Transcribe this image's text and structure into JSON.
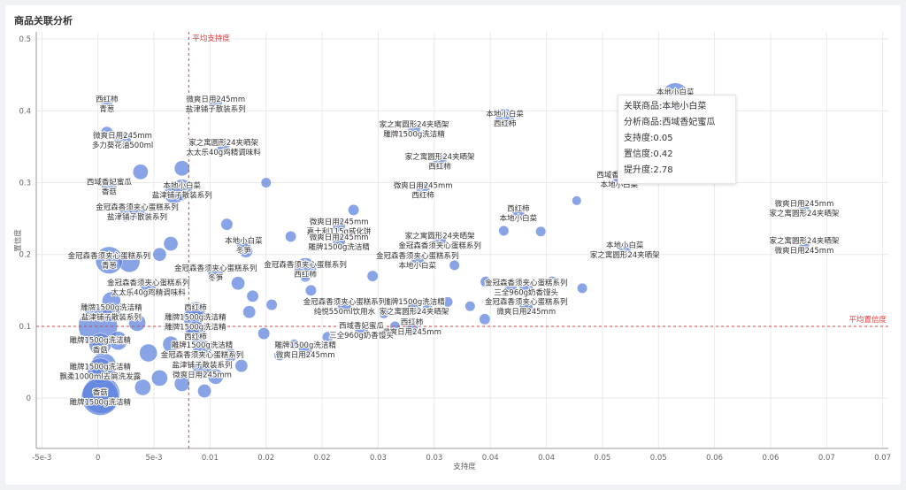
{
  "page": {
    "title": "商品关联分析"
  },
  "colors": {
    "bubble": "#5b7fde",
    "ref_line": "#e23b3b",
    "grid": "#e9e9e9",
    "axis": "#999999"
  },
  "tooltip": {
    "visible": true,
    "lines": [
      "关联商品:本地小白菜",
      "分析商品:西域香妃蜜瓜",
      "支持度:0.05",
      "置信度:0.42",
      "提升度:2.78"
    ]
  },
  "chart_data": {
    "type": "scatter",
    "xlabel": "支持度",
    "ylabel": "置信度",
    "xlim": [
      -0.0055,
      0.0705
    ],
    "ylim": [
      -0.07,
      0.51
    ],
    "x_ticks": [
      {
        "v": -0.005,
        "t": "-5e-3"
      },
      {
        "v": 0,
        "t": "0"
      },
      {
        "v": 0.005,
        "t": "5e-3"
      },
      {
        "v": 0.01,
        "t": "0.01"
      },
      {
        "v": 0.015,
        "t": "0.02"
      },
      {
        "v": 0.02,
        "t": "0.02"
      },
      {
        "v": 0.025,
        "t": "0.03"
      },
      {
        "v": 0.03,
        "t": "0.03"
      },
      {
        "v": 0.035,
        "t": "0.04"
      },
      {
        "v": 0.04,
        "t": "0.04"
      },
      {
        "v": 0.045,
        "t": "0.05"
      },
      {
        "v": 0.05,
        "t": "0.05"
      },
      {
        "v": 0.055,
        "t": "0.06"
      },
      {
        "v": 0.06,
        "t": "0.06"
      },
      {
        "v": 0.065,
        "t": "0.07"
      },
      {
        "v": 0.07,
        "t": "0.07"
      }
    ],
    "y_ticks": [
      {
        "v": 0,
        "t": "0"
      },
      {
        "v": 0.1,
        "t": "0.1"
      },
      {
        "v": 0.2,
        "t": "0.2"
      },
      {
        "v": 0.3,
        "t": "0.3"
      },
      {
        "v": 0.4,
        "t": "0.4"
      },
      {
        "v": 0.5,
        "t": "0.5"
      }
    ],
    "ref_lines": {
      "x": {
        "value": 0.0081,
        "label": "平均支持度"
      },
      "y": {
        "value": 0.1,
        "label": "平均置信度"
      }
    },
    "labeled_points": [
      {
        "x": 0.0515,
        "y": 0.42,
        "size": 3.2,
        "labels": [
          "本地小白菜",
          "西域香妃蜜瓜"
        ]
      },
      {
        "x": 0.0363,
        "y": 0.39,
        "size": 2.2,
        "labels": [
          "本地小白菜",
          "西红柿"
        ]
      },
      {
        "x": 0.0282,
        "y": 0.375,
        "size": 1.5,
        "labels": [
          "家之寓圆形24夹晒架",
          "雕牌1500g洗洁精"
        ]
      },
      {
        "x": 0.0305,
        "y": 0.33,
        "size": 1.6,
        "labels": [
          "家之寓圆形24夹晒架",
          "西红柿"
        ]
      },
      {
        "x": 0.029,
        "y": 0.29,
        "size": 1.6,
        "labels": [
          "微爽日用245mm",
          "西红柿"
        ]
      },
      {
        "x": 0.0465,
        "y": 0.305,
        "size": 1.6,
        "labels": [
          "西域香妃蜜瓜",
          "本地小白菜"
        ]
      },
      {
        "x": 0.0375,
        "y": 0.258,
        "size": 1.5,
        "labels": [
          "西红柿",
          "本地小白菜"
        ]
      },
      {
        "x": 0.063,
        "y": 0.265,
        "size": 1.2,
        "labels": [
          "微爽日用245mm",
          "家之寓圆形24夹晒架"
        ]
      },
      {
        "x": 0.063,
        "y": 0.213,
        "size": 1.2,
        "labels": [
          "家之寓圆形24夹晒架",
          "微爽日用245mm"
        ]
      },
      {
        "x": 0.047,
        "y": 0.207,
        "size": 1.4,
        "labels": [
          "本地小白菜",
          "家之寓圆形24夹晒架"
        ]
      },
      {
        "x": 0.0305,
        "y": 0.22,
        "size": 1.5,
        "labels": [
          "家之寓圆形24夹晒架",
          "金冠森香须夹心蛋糕系列"
        ]
      },
      {
        "x": 0.0285,
        "y": 0.192,
        "size": 1.5,
        "labels": [
          "金冠森香须夹心蛋糕系列",
          "本地小白菜"
        ]
      },
      {
        "x": 0.0382,
        "y": 0.155,
        "size": 1.6,
        "labels": [
          "金冠森香须夹心蛋糕系列",
          "三全960g奶香馒头"
        ]
      },
      {
        "x": 0.0382,
        "y": 0.128,
        "size": 1.6,
        "labels": [
          "金冠森香须夹心蛋糕系列",
          "微爽日用245mm"
        ]
      },
      {
        "x": 0.0282,
        "y": 0.128,
        "size": 1.5,
        "labels": [
          "雕牌1500g洗洁精",
          "家之寓圆形24夹晒架"
        ]
      },
      {
        "x": 0.028,
        "y": 0.1,
        "size": 1.5,
        "labels": [
          "西红柿",
          "微爽日用245mm"
        ]
      },
      {
        "x": 0.0215,
        "y": 0.24,
        "size": 1.5,
        "labels": [
          "微爽日用245mm",
          "嘉士利115g威化饼"
        ]
      },
      {
        "x": 0.0215,
        "y": 0.218,
        "size": 1.5,
        "labels": [
          "微爽日用245mm",
          "雕牌1500g洗洁精"
        ]
      },
      {
        "x": 0.013,
        "y": 0.213,
        "size": 1.6,
        "labels": [
          "本地小白菜",
          "冬笋"
        ]
      },
      {
        "x": 0.0185,
        "y": 0.18,
        "size": 2.6,
        "labels": [
          "金冠森香须夹心蛋糕系列",
          "西红柿"
        ]
      },
      {
        "x": 0.0105,
        "y": 0.175,
        "size": 1.8,
        "labels": [
          "金冠森香须夹心蛋糕系列",
          "冬笋"
        ]
      },
      {
        "x": 0.0035,
        "y": 0.26,
        "size": 1.8,
        "labels": [
          "金冠森香须夹心蛋糕系列",
          "盐津铺子散装系列"
        ]
      },
      {
        "x": 0.0075,
        "y": 0.29,
        "size": 2.5,
        "labels": [
          "本地小白菜",
          "盐津铺子散装系列"
        ]
      },
      {
        "x": 0.001,
        "y": 0.295,
        "size": 1.8,
        "labels": [
          "西域香妃蜜瓜",
          "香菇"
        ]
      },
      {
        "x": 0.0008,
        "y": 0.41,
        "size": 1.4,
        "labels": [
          "西红柿",
          "青葱"
        ]
      },
      {
        "x": 0.0105,
        "y": 0.41,
        "size": 1.6,
        "labels": [
          "微爽日用245mm",
          "盐津铺子散装系列"
        ]
      },
      {
        "x": 0.0022,
        "y": 0.36,
        "size": 2.0,
        "labels": [
          "微爽日用245mm",
          "多力葵花油500ml"
        ]
      },
      {
        "x": 0.0112,
        "y": 0.35,
        "size": 1.5,
        "labels": [
          "家之寓圆形24夹晒架",
          "太太乐40g鸡精调味料"
        ]
      },
      {
        "x": 0.001,
        "y": 0.192,
        "size": 3.2,
        "labels": [
          "金冠森香须夹心蛋糕系列",
          "青葱"
        ]
      },
      {
        "x": 0.0045,
        "y": 0.155,
        "size": 1.8,
        "labels": [
          "金冠森香须夹心蛋糕系列",
          "太太乐40g鸡精调味料"
        ]
      },
      {
        "x": 0.0012,
        "y": 0.12,
        "size": 2.2,
        "labels": [
          "雕牌1500g洗洁精",
          "盐津铺子散装系列"
        ]
      },
      {
        "x": 0.0087,
        "y": 0.12,
        "size": 2.4,
        "labels": [
          "西红柿",
          "雕牌1500g洗洁精"
        ]
      },
      {
        "x": 0.0087,
        "y": 0.093,
        "size": 2.4,
        "labels": [
          "雕牌1500g洗洁精",
          "西红柿"
        ]
      },
      {
        "x": 0.022,
        "y": 0.128,
        "size": 1.6,
        "labels": [
          "金冠森香须夹心蛋糕系列",
          "纯悦550ml饮用水"
        ]
      },
      {
        "x": 0.0235,
        "y": 0.095,
        "size": 1.6,
        "labels": [
          "西域香妃蜜瓜",
          "三全960g奶香馒头"
        ]
      },
      {
        "x": 0.0185,
        "y": 0.068,
        "size": 1.6,
        "labels": [
          "雕牌1500g洗洁精",
          "微爽日用245mm"
        ]
      },
      {
        "x": 0.0002,
        "y": 0.075,
        "size": 2.6,
        "labels": [
          "雕牌1500g洗洁精",
          "香菇"
        ]
      },
      {
        "x": 0.0093,
        "y": 0.068,
        "size": 2.2,
        "labels": [
          "雕牌1500g洗洁精",
          "金冠森香须夹心蛋糕系列"
        ]
      },
      {
        "x": 0.0093,
        "y": 0.04,
        "size": 2.2,
        "labels": [
          "盐津铺子散装系列",
          "微爽日用245mm"
        ]
      },
      {
        "x": 0.0002,
        "y": 0.038,
        "size": 3.0,
        "labels": [
          "雕牌1500g洗洁精",
          "飘柔1000ml去屑洗发露"
        ]
      },
      {
        "x": 0.0002,
        "y": 0.002,
        "size": 4.4,
        "labels": [
          "香菇",
          "雕牌1500g洗洁精"
        ]
      }
    ],
    "bubbles": [
      {
        "x": 0,
        "y": 0.1,
        "size": 4.6
      },
      {
        "x": 0.0003,
        "y": 0.005,
        "size": 4.4
      },
      {
        "x": 0.0005,
        "y": 0.045,
        "size": 3.0
      },
      {
        "x": 0.0012,
        "y": 0.135,
        "size": 2.2
      },
      {
        "x": 0.0028,
        "y": 0.19,
        "size": 2.5
      },
      {
        "x": 0.0035,
        "y": 0.105,
        "size": 2.0
      },
      {
        "x": 0.0045,
        "y": 0.063,
        "size": 2.1
      },
      {
        "x": 0.0055,
        "y": 0.028,
        "size": 1.9
      },
      {
        "x": 0.0065,
        "y": 0.075,
        "size": 1.9
      },
      {
        "x": 0.0075,
        "y": 0.32,
        "size": 1.8
      },
      {
        "x": 0.0065,
        "y": 0.215,
        "size": 1.7
      },
      {
        "x": 0.0068,
        "y": 0.285,
        "size": 2.4
      },
      {
        "x": 0.0008,
        "y": 0.37,
        "size": 1.4
      },
      {
        "x": 0.0038,
        "y": 0.315,
        "size": 1.8
      },
      {
        "x": 0.0085,
        "y": 0.112,
        "size": 2.4
      },
      {
        "x": 0.0088,
        "y": 0.09,
        "size": 2.2
      },
      {
        "x": 0.0105,
        "y": 0.03,
        "size": 1.8
      },
      {
        "x": 0.0118,
        "y": 0.06,
        "size": 1.6
      },
      {
        "x": 0.0125,
        "y": 0.16,
        "size": 1.6
      },
      {
        "x": 0.0132,
        "y": 0.205,
        "size": 1.6
      },
      {
        "x": 0.0135,
        "y": 0.12,
        "size": 1.5
      },
      {
        "x": 0.0148,
        "y": 0.09,
        "size": 1.4
      },
      {
        "x": 0.015,
        "y": 0.3,
        "size": 1.2
      },
      {
        "x": 0.0172,
        "y": 0.225,
        "size": 1.3
      },
      {
        "x": 0.0185,
        "y": 0.17,
        "size": 1.4
      },
      {
        "x": 0.019,
        "y": 0.15,
        "size": 1.3
      },
      {
        "x": 0.0205,
        "y": 0.085,
        "size": 1.3
      },
      {
        "x": 0.0228,
        "y": 0.262,
        "size": 1.3
      },
      {
        "x": 0.0245,
        "y": 0.17,
        "size": 1.3
      },
      {
        "x": 0.0255,
        "y": 0.118,
        "size": 1.2
      },
      {
        "x": 0.0265,
        "y": 0.1,
        "size": 1.2
      },
      {
        "x": 0.0318,
        "y": 0.185,
        "size": 1.2
      },
      {
        "x": 0.0346,
        "y": 0.162,
        "size": 1.3
      },
      {
        "x": 0.0362,
        "y": 0.233,
        "size": 1.2
      },
      {
        "x": 0.0368,
        "y": 0.155,
        "size": 1.5
      },
      {
        "x": 0.0395,
        "y": 0.232,
        "size": 1.2
      },
      {
        "x": 0.0405,
        "y": 0.162,
        "size": 1.3
      },
      {
        "x": 0.0427,
        "y": 0.275,
        "size": 1.1
      },
      {
        "x": 0.0432,
        "y": 0.153,
        "size": 1.2
      },
      {
        "x": 0.0312,
        "y": 0.134,
        "size": 1.2
      },
      {
        "x": 0.0294,
        "y": 0.125,
        "size": 1.2
      },
      {
        "x": 0.0332,
        "y": 0.128,
        "size": 1.2
      },
      {
        "x": 0.0345,
        "y": 0.11,
        "size": 1.3
      },
      {
        "x": 0.0138,
        "y": 0.142,
        "size": 1.4
      },
      {
        "x": 0.0155,
        "y": 0.13,
        "size": 1.3
      },
      {
        "x": 0.0162,
        "y": 0.06,
        "size": 1.3
      },
      {
        "x": 0.0175,
        "y": 0.075,
        "size": 1.2
      },
      {
        "x": 0.0115,
        "y": 0.242,
        "size": 1.4
      },
      {
        "x": 0.0025,
        "y": 0.255,
        "size": 1.6
      },
      {
        "x": 0.0055,
        "y": 0.2,
        "size": 1.6
      },
      {
        "x": 0.0018,
        "y": 0.08,
        "size": 2.2
      },
      {
        "x": 0.004,
        "y": 0.015,
        "size": 1.9
      },
      {
        "x": 0.0075,
        "y": 0.02,
        "size": 1.8
      },
      {
        "x": 0.0095,
        "y": 0.01,
        "size": 1.6
      },
      {
        "x": 0.0128,
        "y": 0.045,
        "size": 1.5
      }
    ]
  }
}
